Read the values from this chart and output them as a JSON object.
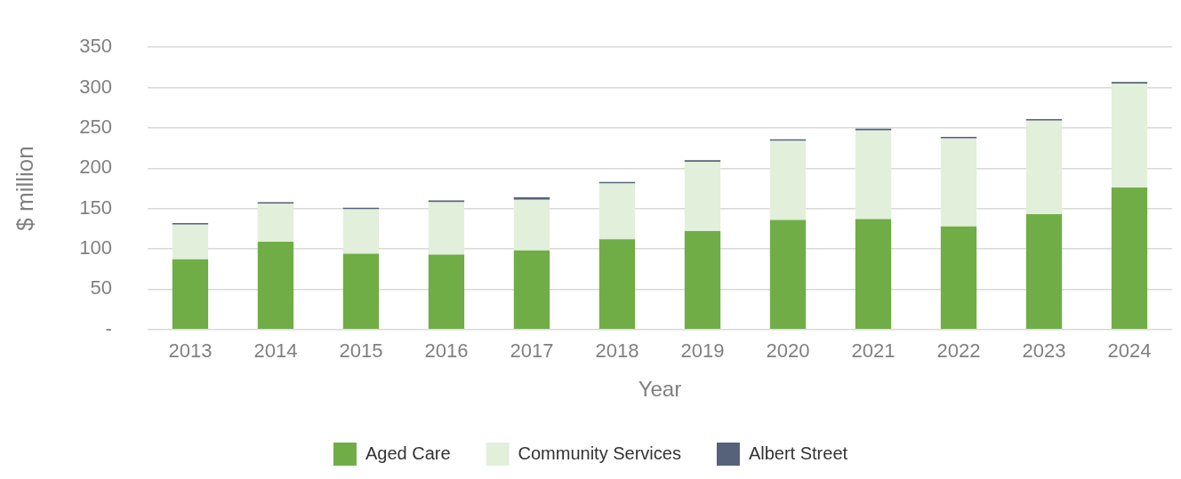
{
  "chart_data": {
    "type": "bar",
    "stacked": true,
    "xlabel": "Year",
    "ylabel": "$ million",
    "categories": [
      "2013",
      "2014",
      "2015",
      "2016",
      "2017",
      "2018",
      "2019",
      "2020",
      "2021",
      "2022",
      "2023",
      "2024"
    ],
    "series": [
      {
        "name": "Aged Care",
        "color": "#70ad47",
        "values": [
          87,
          109,
          94,
          93,
          98,
          112,
          122,
          136,
          137,
          128,
          143,
          176
        ]
      },
      {
        "name": "Community Services",
        "color": "#e2efda",
        "values": [
          43,
          47,
          55,
          65,
          63,
          69,
          86,
          98,
          110,
          109,
          116,
          129
        ]
      },
      {
        "name": "Albert Street",
        "color": "#55627a",
        "values": [
          2,
          2,
          2,
          2,
          3,
          2,
          2,
          2,
          2,
          2,
          2,
          2
        ]
      }
    ],
    "ylim": [
      0,
      350
    ],
    "yticks": [
      {
        "value": 0,
        "label": "-"
      },
      50,
      100,
      150,
      200,
      250,
      300,
      350
    ],
    "grid": "y",
    "legend": "bottom"
  }
}
